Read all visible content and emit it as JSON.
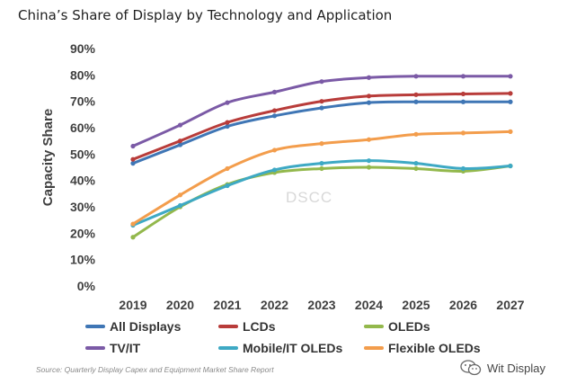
{
  "title": "China’s Share of Display by Technology and Application",
  "source_note": "Source: Quarterly Display Capex and Equipment Market Share Report",
  "watermark_text": "DSCC",
  "brand_text": "Wit Display",
  "chart_data": {
    "type": "line",
    "title": "China’s Share of Display by Technology and Application",
    "xlabel": "",
    "ylabel": "Capacity Share",
    "x": [
      "2019",
      "2020",
      "2021",
      "2022",
      "2023",
      "2024",
      "2025",
      "2026",
      "2027"
    ],
    "ylim": [
      0,
      90
    ],
    "yticks": [
      "0%",
      "10%",
      "20%",
      "30%",
      "40%",
      "50%",
      "60%",
      "70%",
      "80%",
      "90%"
    ],
    "grid": false,
    "legend_position": "bottom",
    "series": [
      {
        "name": "All Displays",
        "color": "#3f76b5",
        "values": [
          46.5,
          53.5,
          60.5,
          64.5,
          67.5,
          69.5,
          69.8,
          69.8,
          69.8
        ]
      },
      {
        "name": "LCDs",
        "color": "#b83c3a",
        "values": [
          48,
          55,
          62,
          66.5,
          70,
          72,
          72.5,
          72.8,
          73
        ]
      },
      {
        "name": "OLEDs",
        "color": "#93b84c",
        "values": [
          18.5,
          30,
          38.5,
          43,
          44.5,
          45,
          44.5,
          43.5,
          45.5
        ]
      },
      {
        "name": "TV/IT",
        "color": "#7b5aa6",
        "values": [
          53,
          61,
          69.5,
          73.5,
          77.5,
          79,
          79.5,
          79.5,
          79.5
        ]
      },
      {
        "name": "Mobile/IT OLEDs",
        "color": "#3ea9c4",
        "values": [
          23,
          30.5,
          38,
          44,
          46.5,
          47.5,
          46.5,
          44.5,
          45.5
        ]
      },
      {
        "name": "Flexible OLEDs",
        "color": "#f39d4c",
        "values": [
          23.5,
          34.5,
          44.5,
          51.5,
          54,
          55.5,
          57.5,
          58,
          58.5
        ]
      }
    ]
  }
}
